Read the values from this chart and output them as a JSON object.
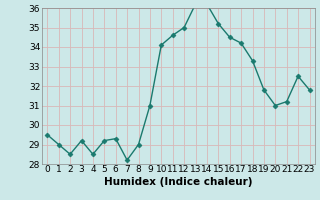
{
  "x": [
    0,
    1,
    2,
    3,
    4,
    5,
    6,
    7,
    8,
    9,
    10,
    11,
    12,
    13,
    14,
    15,
    16,
    17,
    18,
    19,
    20,
    21,
    22,
    23
  ],
  "y": [
    29.5,
    29.0,
    28.5,
    29.2,
    28.5,
    29.2,
    29.3,
    28.2,
    29.0,
    31.0,
    34.1,
    34.6,
    35.0,
    36.2,
    36.2,
    35.2,
    34.5,
    34.2,
    33.3,
    31.8,
    31.0,
    31.2,
    32.5,
    31.8
  ],
  "ylim": [
    28,
    36
  ],
  "yticks": [
    28,
    29,
    30,
    31,
    32,
    33,
    34,
    35,
    36
  ],
  "xticks": [
    0,
    1,
    2,
    3,
    4,
    5,
    6,
    7,
    8,
    9,
    10,
    11,
    12,
    13,
    14,
    15,
    16,
    17,
    18,
    19,
    20,
    21,
    22,
    23
  ],
  "xlabel": "Humidex (Indice chaleur)",
  "line_color": "#1a7a6e",
  "marker": "D",
  "marker_size": 2.5,
  "bg_color": "#cce8e8",
  "grid_color": "#b0d0d0",
  "xlabel_fontsize": 7.5,
  "tick_fontsize": 6.5
}
